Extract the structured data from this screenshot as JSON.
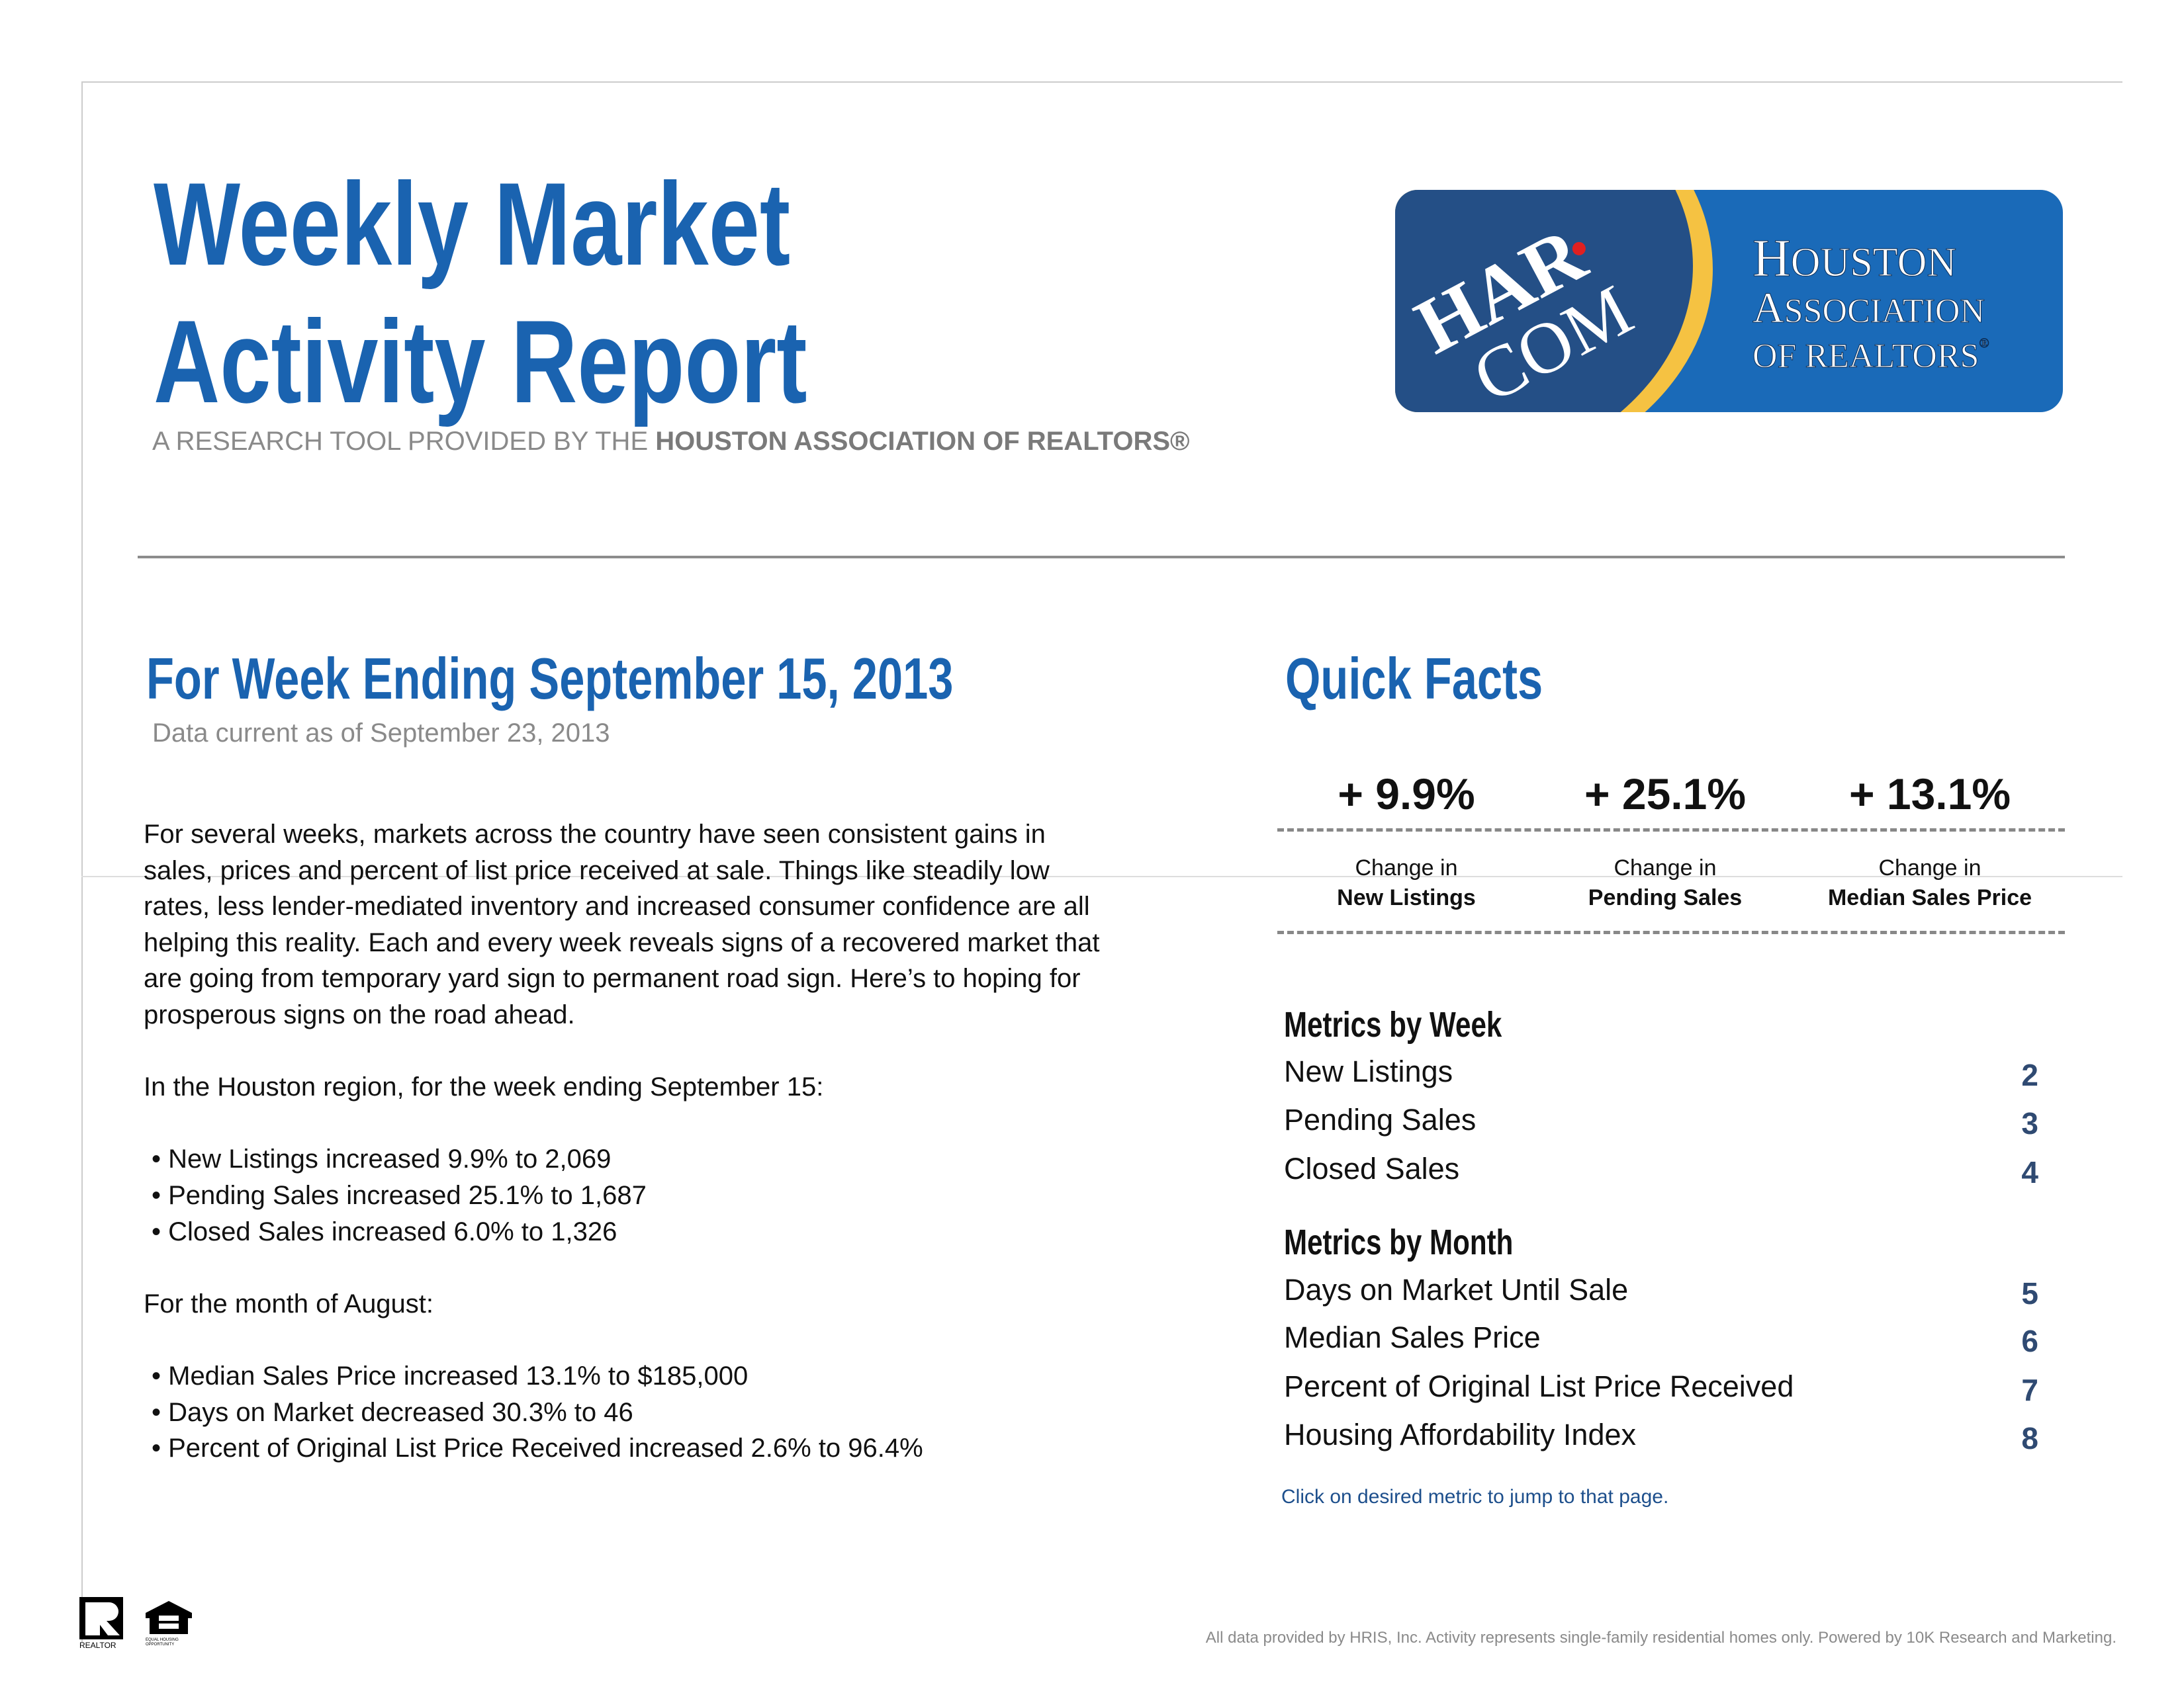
{
  "header": {
    "title_line1": "Weekly Market",
    "title_line2": "Activity Report",
    "subtitle_prefix": "A RESEARCH TOOL PROVIDED BY THE ",
    "subtitle_bold": "HOUSTON ASSOCIATION OF REALTORS®",
    "logo": {
      "text": "HAR.COM Houston Association of Realtors®",
      "brand_color": "#1a6ab8",
      "accent": "#f5c242"
    }
  },
  "week": {
    "heading": "For Week Ending September 15, 2013",
    "data_current": "Data current as of September 23, 2013",
    "intro": "For several weeks, markets across the country have seen consistent gains in sales, prices and percent of list price received at sale. Things like steadily low rates, less lender-mediated inventory and increased consumer confidence are all helping this reality. Each and every week reveals signs of a recovered market that are going from temporary yard sign to permanent road sign. Here’s to hoping for prosperous signs on the road ahead.",
    "region_line": "In the Houston region, for the week ending September 15:",
    "weekly_bullets": [
      "• New Listings increased 9.9% to 2,069",
      "• Pending Sales increased 25.1% to 1,687",
      "• Closed Sales increased 6.0% to 1,326"
    ],
    "month_line": "For the month of August:",
    "monthly_bullets": [
      "• Median Sales Price increased 13.1% to $185,000",
      "• Days on Market decreased 30.3% to 46",
      "• Percent of Original List Price Received increased 2.6% to 96.4%"
    ]
  },
  "quick_facts": {
    "heading": "Quick Facts",
    "facts": [
      {
        "value": "+ 9.9%",
        "line1": "Change in",
        "line2": "New Listings"
      },
      {
        "value": "+ 25.1%",
        "line1": "Change in",
        "line2": "Pending Sales"
      },
      {
        "value": "+ 13.1%",
        "line1": "Change in",
        "line2": "Median Sales Price"
      }
    ]
  },
  "metrics": {
    "week_heading": "Metrics by Week",
    "week_items": [
      {
        "label": "New Listings",
        "page": "2"
      },
      {
        "label": "Pending Sales",
        "page": "3"
      },
      {
        "label": "Closed Sales",
        "page": "4"
      }
    ],
    "month_heading": "Metrics by Month",
    "month_items": [
      {
        "label": "Days on Market Until Sale",
        "page": "5"
      },
      {
        "label": "Median Sales Price",
        "page": "6"
      },
      {
        "label": "Percent of Original List Price Received",
        "page": "7"
      },
      {
        "label": "Housing Affordability Index",
        "page": "8"
      }
    ],
    "click_hint": "Click on desired metric to jump to that page."
  },
  "footer": {
    "disclaimer": "All data provided by HRIS, Inc. Activity represents single-family residential homes only. Powered by 10K Research and Marketing.",
    "realtor_logo": "REALTOR®",
    "equal_housing_logo": "EQUAL HOUSING OPPORTUNITY"
  }
}
